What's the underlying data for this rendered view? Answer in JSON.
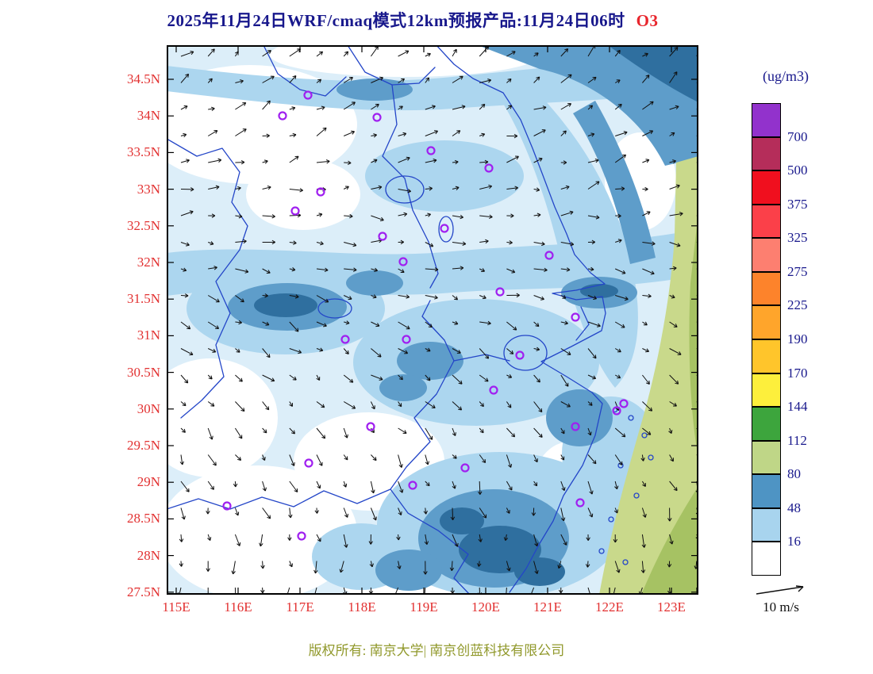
{
  "title": {
    "text": "2025年11月24日WRF/cmaq模式12km预报产品:11月24日06时",
    "species": "O3"
  },
  "axes": {
    "lat_ticks": [
      "34.5N",
      "34N",
      "33.5N",
      "33N",
      "32.5N",
      "32N",
      "31.5N",
      "31N",
      "30.5N",
      "30N",
      "29.5N",
      "29N",
      "28.5N",
      "28N",
      "27.5N"
    ],
    "lon_ticks": [
      "115E",
      "116E",
      "117E",
      "118E",
      "119E",
      "120E",
      "121E",
      "122E",
      "123E"
    ]
  },
  "colorbar": {
    "unit": "(ug/m3)",
    "levels": [
      700,
      500,
      375,
      325,
      275,
      225,
      190,
      170,
      144,
      112,
      80,
      48,
      16
    ],
    "colors": [
      "#9232cc",
      "#b52d5a",
      "#f00f1e",
      "#fb4049",
      "#fd7f70",
      "#fd832b",
      "#ffa52b",
      "#ffc52b",
      "#fdef3c",
      "#3da53d",
      "#bfd687",
      "#4e94c4",
      "#a8d4ee",
      "#ffffff"
    ]
  },
  "wind_legend": {
    "label": "10 m/s"
  },
  "footer": {
    "text": "版权所有: 南京大学| 南京创蓝科技有限公司"
  },
  "map": {
    "stations": [
      [
        178,
        63
      ],
      [
        146,
        89
      ],
      [
        265,
        91
      ],
      [
        333,
        133
      ],
      [
        406,
        155
      ],
      [
        194,
        185
      ],
      [
        162,
        209
      ],
      [
        272,
        241
      ],
      [
        350,
        231
      ],
      [
        482,
        265
      ],
      [
        298,
        273
      ],
      [
        420,
        311
      ],
      [
        515,
        343
      ],
      [
        225,
        371
      ],
      [
        302,
        371
      ],
      [
        445,
        391
      ],
      [
        412,
        435
      ],
      [
        567,
        461
      ],
      [
        576,
        452
      ],
      [
        515,
        481
      ],
      [
        257,
        481
      ],
      [
        179,
        527
      ],
      [
        310,
        555
      ],
      [
        376,
        533
      ],
      [
        521,
        577
      ],
      [
        76,
        581
      ],
      [
        170,
        619
      ]
    ]
  }
}
